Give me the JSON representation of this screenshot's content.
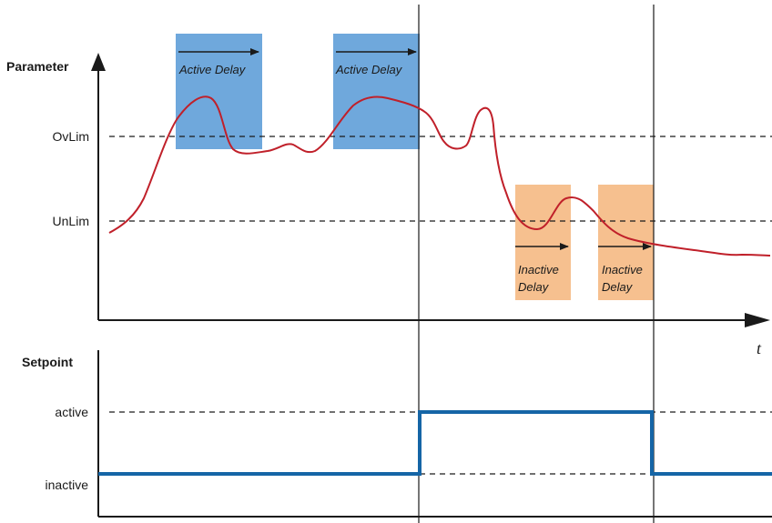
{
  "top_chart": {
    "ylabel": "Parameter",
    "levels": {
      "ovlim": "OvLim",
      "unlim": "UnLim"
    },
    "xlabel": "t",
    "active_delay_label": "Active Delay",
    "inactive_delay_line1": "Inactive",
    "inactive_delay_line2": "Delay"
  },
  "bottom_chart": {
    "ylabel": "Setpoint",
    "levels": {
      "active": "active",
      "inactive": "inactive"
    }
  },
  "colors": {
    "signal": "#c0202a",
    "setpoint": "#1565a6",
    "active_box": "#6fa8dc",
    "inactive_box": "#f6c08f",
    "axis": "#1a1a1a"
  }
}
